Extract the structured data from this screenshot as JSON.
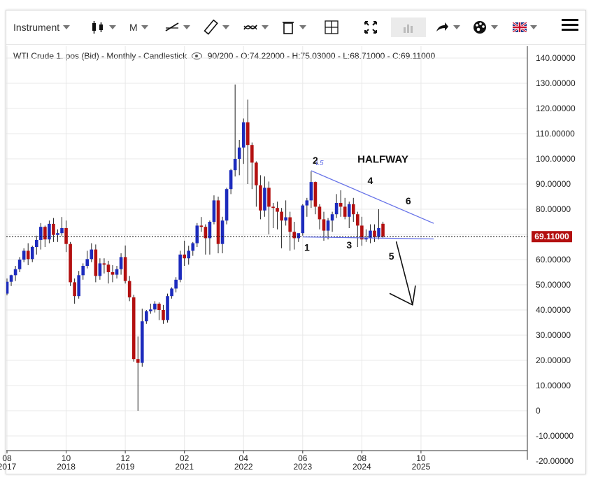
{
  "toolbar": {
    "instrument_label": "Instrument",
    "period_label": "M",
    "icons": [
      "candlestick-icon",
      "line-tool-icon",
      "ruler-icon",
      "indicator-icon",
      "trash-icon",
      "crosshair-icon",
      "fullscreen-icon",
      "volume-icon",
      "share-icon",
      "palette-icon",
      "uk-flag-icon",
      "menu-icon"
    ]
  },
  "legend": {
    "text": "WTI Crude 1. pos (Bid) - Monthly - Candlestick",
    "stats": "90/200 - O:74.22000 - H:75.03000 - L:68.71000 - C:69.11000"
  },
  "colors": {
    "up": "#1c2bbd",
    "down": "#b31010",
    "trend": "#6470e8",
    "price_tag": "#b31010"
  },
  "chart_data": {
    "type": "candlestick",
    "title": "WTI Crude 1. pos (Bid) - Monthly - Candlestick",
    "ylim": [
      -15,
      145
    ],
    "y_ticks": [
      "140.00000",
      "130.00000",
      "120.00000",
      "110.00000",
      "100.00000",
      "90.00000",
      "80.00000",
      "70.00000",
      "60.00000",
      "50.00000",
      "40.00000",
      "30.00000",
      "20.00000",
      "10.00000",
      "0",
      "-10.00000",
      "-20.00000"
    ],
    "y_tick_values": [
      140,
      130,
      120,
      110,
      100,
      90,
      80,
      70,
      60,
      50,
      40,
      30,
      20,
      10,
      0,
      -10,
      -20
    ],
    "x_ticks": [
      {
        "month": "08",
        "year": "2017",
        "idx": 0
      },
      {
        "month": "10",
        "year": "2018",
        "idx": 14
      },
      {
        "month": "12",
        "year": "2019",
        "idx": 28
      },
      {
        "month": "02",
        "year": "2021",
        "idx": 42
      },
      {
        "month": "04",
        "year": "2022",
        "idx": 56
      },
      {
        "month": "06",
        "year": "2023",
        "idx": 70
      },
      {
        "month": "08",
        "year": "2024",
        "idx": 84
      },
      {
        "month": "10",
        "year": "2025",
        "idx": 98
      }
    ],
    "current_price": "69.11000",
    "current_value": 69.11,
    "candles": [
      [
        46.5,
        52.5,
        45.8,
        51.2
      ],
      [
        51.2,
        54.0,
        49.5,
        53.8
      ],
      [
        53.8,
        57.5,
        51.5,
        56.2
      ],
      [
        56.2,
        61.0,
        55.0,
        60.0
      ],
      [
        60.0,
        64.5,
        59.0,
        63.5
      ],
      [
        63.5,
        66.5,
        57.8,
        60.2
      ],
      [
        60.2,
        65.5,
        59.0,
        65.0
      ],
      [
        65.0,
        69.5,
        62.0,
        67.8
      ],
      [
        67.8,
        74.5,
        64.0,
        73.0
      ],
      [
        73.0,
        73.5,
        65.0,
        68.0
      ],
      [
        68.0,
        75.5,
        66.5,
        74.2
      ],
      [
        74.2,
        76.5,
        67.0,
        69.8
      ],
      [
        69.8,
        72.0,
        67.0,
        70.5
      ],
      [
        70.5,
        76.9,
        69.5,
        72.5
      ],
      [
        72.5,
        75.5,
        63.0,
        66.2
      ],
      [
        66.2,
        67.0,
        49.5,
        51.0
      ],
      [
        51.0,
        52.5,
        42.5,
        45.5
      ],
      [
        45.5,
        55.5,
        44.5,
        53.8
      ],
      [
        53.8,
        58.5,
        52.0,
        57.5
      ],
      [
        57.5,
        63.5,
        56.5,
        60.2
      ],
      [
        60.2,
        66.5,
        59.0,
        64.0
      ],
      [
        64.0,
        66.0,
        51.0,
        53.5
      ],
      [
        53.5,
        60.5,
        52.0,
        58.5
      ],
      [
        58.5,
        60.5,
        54.5,
        58.0
      ],
      [
        58.0,
        59.5,
        50.5,
        55.0
      ],
      [
        55.0,
        57.8,
        51.0,
        54.0
      ],
      [
        54.0,
        57.5,
        52.5,
        56.2
      ],
      [
        56.2,
        62.5,
        54.0,
        61.0
      ],
      [
        61.0,
        65.6,
        50.5,
        51.5
      ],
      [
        51.5,
        53.5,
        43.5,
        45.0
      ],
      [
        45.0,
        46.0,
        19.5,
        20.5
      ],
      [
        20.5,
        29.5,
        0.0,
        19.0
      ],
      [
        19.0,
        40.5,
        17.5,
        35.5
      ],
      [
        35.5,
        40.0,
        34.5,
        39.5
      ],
      [
        39.5,
        42.5,
        38.5,
        40.2
      ],
      [
        40.2,
        43.5,
        39.0,
        42.5
      ],
      [
        42.5,
        43.0,
        36.0,
        40.0
      ],
      [
        40.0,
        42.0,
        34.5,
        36.0
      ],
      [
        36.0,
        46.5,
        35.0,
        45.5
      ],
      [
        45.5,
        49.0,
        44.5,
        48.5
      ],
      [
        48.5,
        53.0,
        47.0,
        52.0
      ],
      [
        52.0,
        63.5,
        51.0,
        62.0
      ],
      [
        62.0,
        67.5,
        57.5,
        60.5
      ],
      [
        60.5,
        65.5,
        58.0,
        63.5
      ],
      [
        63.5,
        67.0,
        61.5,
        66.5
      ],
      [
        66.5,
        74.5,
        65.0,
        73.5
      ],
      [
        73.5,
        76.9,
        71.0,
        73.0
      ],
      [
        73.0,
        74.0,
        62.0,
        68.5
      ],
      [
        68.5,
        75.5,
        62.0,
        75.0
      ],
      [
        75.0,
        85.5,
        74.0,
        83.5
      ],
      [
        83.5,
        85.0,
        62.5,
        66.2
      ],
      [
        66.2,
        77.0,
        62.5,
        75.5
      ],
      [
        75.5,
        88.5,
        74.0,
        88.0
      ],
      [
        88.0,
        96.0,
        86.0,
        95.5
      ],
      [
        95.5,
        129.5,
        93.0,
        100.0
      ],
      [
        100.0,
        107.5,
        93.5,
        104.5
      ],
      [
        104.5,
        116.0,
        98.0,
        114.5
      ],
      [
        114.5,
        123.5,
        90.0,
        105.5
      ],
      [
        105.5,
        106.5,
        88.0,
        98.5
      ],
      [
        98.5,
        99.0,
        81.0,
        89.5
      ],
      [
        89.5,
        93.5,
        76.0,
        79.5
      ],
      [
        79.5,
        93.0,
        77.0,
        88.5
      ],
      [
        88.5,
        91.0,
        70.0,
        81.0
      ],
      [
        81.0,
        82.5,
        72.5,
        80.5
      ],
      [
        80.5,
        83.0,
        72.0,
        79.0
      ],
      [
        79.0,
        80.5,
        64.5,
        75.5
      ],
      [
        75.5,
        83.5,
        73.5,
        76.8
      ],
      [
        76.8,
        79.0,
        63.5,
        71.0
      ],
      [
        71.0,
        75.0,
        64.0,
        68.5
      ],
      [
        68.5,
        70.0,
        67.0,
        70.5
      ],
      [
        70.5,
        82.0,
        69.5,
        81.5
      ],
      [
        81.5,
        84.5,
        77.0,
        83.5
      ],
      [
        83.5,
        95.0,
        80.5,
        90.8
      ],
      [
        90.8,
        91.0,
        78.0,
        81.0
      ],
      [
        81.0,
        82.0,
        72.0,
        76.0
      ],
      [
        76.0,
        79.0,
        67.5,
        71.5
      ],
      [
        71.5,
        76.5,
        68.0,
        75.5
      ],
      [
        75.5,
        79.0,
        71.0,
        78.0
      ],
      [
        78.0,
        86.0,
        76.5,
        82.5
      ],
      [
        82.5,
        87.5,
        77.0,
        81.0
      ],
      [
        81.0,
        84.5,
        76.0,
        77.0
      ],
      [
        77.0,
        83.0,
        72.5,
        82.0
      ],
      [
        82.0,
        84.5,
        75.0,
        78.0
      ],
      [
        78.0,
        79.0,
        65.0,
        73.5
      ],
      [
        73.5,
        77.0,
        65.5,
        68.0
      ],
      [
        68.0,
        72.0,
        67.0,
        68.5
      ],
      [
        68.5,
        74.0,
        66.5,
        71.5
      ],
      [
        71.5,
        74.0,
        67.0,
        69.0
      ],
      [
        69.0,
        80.0,
        68.0,
        72.5
      ],
      [
        74.22,
        75.03,
        68.71,
        69.11
      ]
    ],
    "current_line": 69.11,
    "trendlines": [
      {
        "from": [
          72,
          95.3
        ],
        "to": [
          101,
          74.4
        ]
      },
      {
        "from": [
          70,
          69.0
        ],
        "to": [
          101,
          68.2
        ]
      }
    ],
    "annotations": [
      {
        "text": "1",
        "idx": 71,
        "y": 63.5
      },
      {
        "text": "2",
        "idx": 73,
        "y": 98.0
      },
      {
        "text": "3",
        "idx": 81,
        "y": 64.5
      },
      {
        "text": "4",
        "idx": 86,
        "y": 90.0
      },
      {
        "text": "5",
        "idx": 91,
        "y": 60.0
      },
      {
        "text": "6",
        "idx": 95,
        "y": 82.0
      },
      {
        "text": "HALFWAY",
        "idx": 89,
        "y": 98.5
      },
      {
        "text": "L5",
        "idx": 74,
        "y": 97.5
      }
    ]
  }
}
